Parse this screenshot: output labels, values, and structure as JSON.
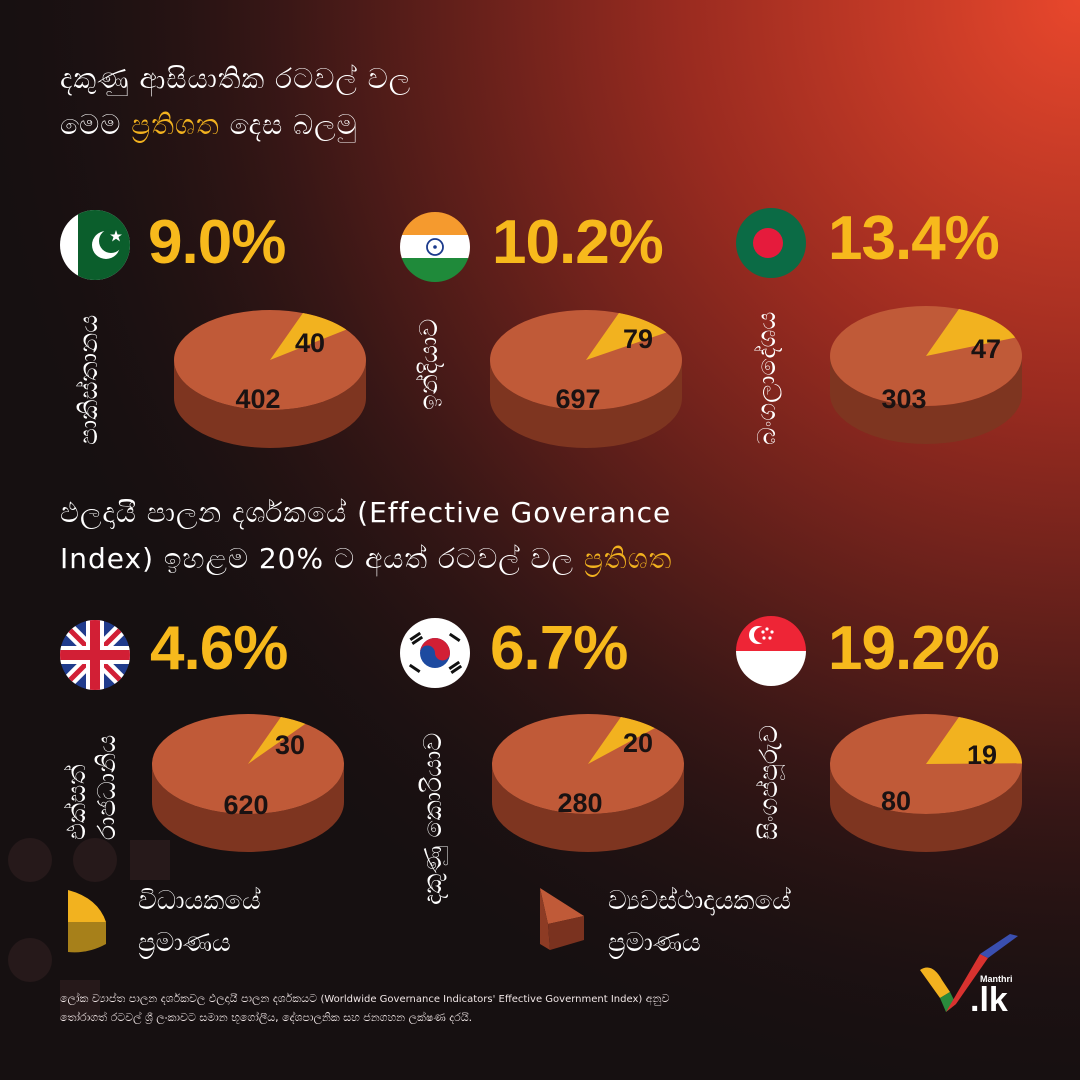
{
  "header_top": {
    "line1": "දකුණු ආසියාතික රටවල් වල",
    "line2_pre": "මෙම ",
    "line2_hl": "ප්‍රතිශත",
    "line2_post": " දෙස බලමු"
  },
  "header_mid": {
    "line1": "ඵලදායී පාලන දර්ශකයේ (Effective Goverance",
    "line2_pre": "Index) ඉහළම 20% ට අයත් රටවල් වල ",
    "line2_hl": "ප්‍රතිශත"
  },
  "countries": [
    {
      "name": "පාකිස්තානය",
      "name2": "",
      "flag": "pakistan-flag",
      "percent": "9.0%",
      "small_label": "40",
      "large_label": "402"
    },
    {
      "name": "ඉන්දියාව",
      "name2": "",
      "flag": "india-flag",
      "percent": "10.2%",
      "small_label": "79",
      "large_label": "697"
    },
    {
      "name": "බංගලාදේශය",
      "name2": "",
      "flag": "bangladesh-flag",
      "percent": "13.4%",
      "small_label": "47",
      "large_label": "303"
    },
    {
      "name": "එක්සත්",
      "name2": "රාජධානිය",
      "flag": "uk-flag",
      "percent": "4.6%",
      "small_label": "30",
      "large_label": "620"
    },
    {
      "name": "දකුණු කොරියාව",
      "name2": "",
      "flag": "south-korea-flag",
      "percent": "6.7%",
      "small_label": "20",
      "large_label": "280"
    },
    {
      "name": "සිංගප්පූරුව",
      "name2": "",
      "flag": "singapore-flag",
      "percent": "19.2%",
      "small_label": "19",
      "large_label": "80"
    }
  ],
  "legend": {
    "executive": {
      "line1": "විධායකයේ",
      "line2": "ප්‍රමාණය"
    },
    "legislature": {
      "line1": "ව්‍යවස්ථාදායකයේ",
      "line2": "ප්‍රමාණය"
    }
  },
  "footnote": {
    "pre": "ලෝක ව්‍යාප්ත පාලන දර්ශකවල ඵලදායී පාලන දර්ශකයට ",
    "en": "(Worldwide Governance Indicators' Effective Government Index)",
    "post": " අනුව",
    "line2": "තෝරාගත් රටවල් ශ්‍රී ලංකාවට සමාන භූගෝලීය, දේශපාලනික සහ ජනගහන ලක්ෂණ දරයි."
  },
  "logo": {
    "small": "Manthri",
    "main": ".lk"
  },
  "colors": {
    "executive": "#f2b21f",
    "legislature": "#c05a38",
    "accent": "#f2b21f"
  },
  "chart_data": {
    "type": "pie",
    "series_labels": [
      "විධායකයේ ප්‍රමාණය",
      "ව්‍යවස්ථාදායකයේ ප්‍රමාණය"
    ],
    "charts": [
      {
        "category": "පාකිස්තානය",
        "executive": 40,
        "legislature": 402,
        "percent": 9.0
      },
      {
        "category": "ඉන්දියාව",
        "executive": 79,
        "legislature": 697,
        "percent": 10.2
      },
      {
        "category": "බංගලාදේශය",
        "executive": 47,
        "legislature": 303,
        "percent": 13.4
      },
      {
        "category": "එක්සත් රාජධානිය",
        "executive": 30,
        "legislature": 620,
        "percent": 4.6
      },
      {
        "category": "දකුණු කොරියාව",
        "executive": 20,
        "legislature": 280,
        "percent": 6.7
      },
      {
        "category": "සිංගප්පූරුව",
        "executive": 19,
        "legislature": 80,
        "percent": 19.2
      }
    ]
  }
}
